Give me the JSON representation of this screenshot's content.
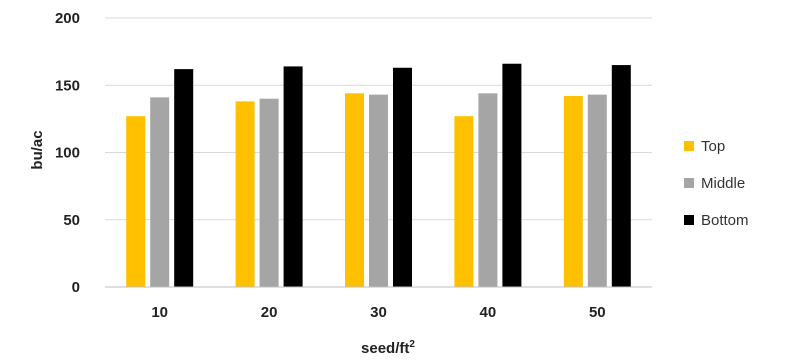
{
  "chart_data": {
    "type": "bar",
    "title": "",
    "xlabel": "seed/ft",
    "xlabel_superscript": "2",
    "ylabel": "bu/ac",
    "ylim": [
      0,
      200
    ],
    "yticks": [
      0,
      50,
      100,
      150,
      200
    ],
    "grid": true,
    "legend_position": "right",
    "categories": [
      "10",
      "20",
      "30",
      "40",
      "50"
    ],
    "series": [
      {
        "name": "Top",
        "color": "#FFC000",
        "values": [
          127,
          138,
          144,
          127,
          142
        ]
      },
      {
        "name": "Middle",
        "color": "#A5A5A5",
        "values": [
          141,
          140,
          143,
          144,
          143
        ]
      },
      {
        "name": "Bottom",
        "color": "#000000",
        "values": [
          162,
          164,
          163,
          166,
          165
        ]
      }
    ]
  }
}
